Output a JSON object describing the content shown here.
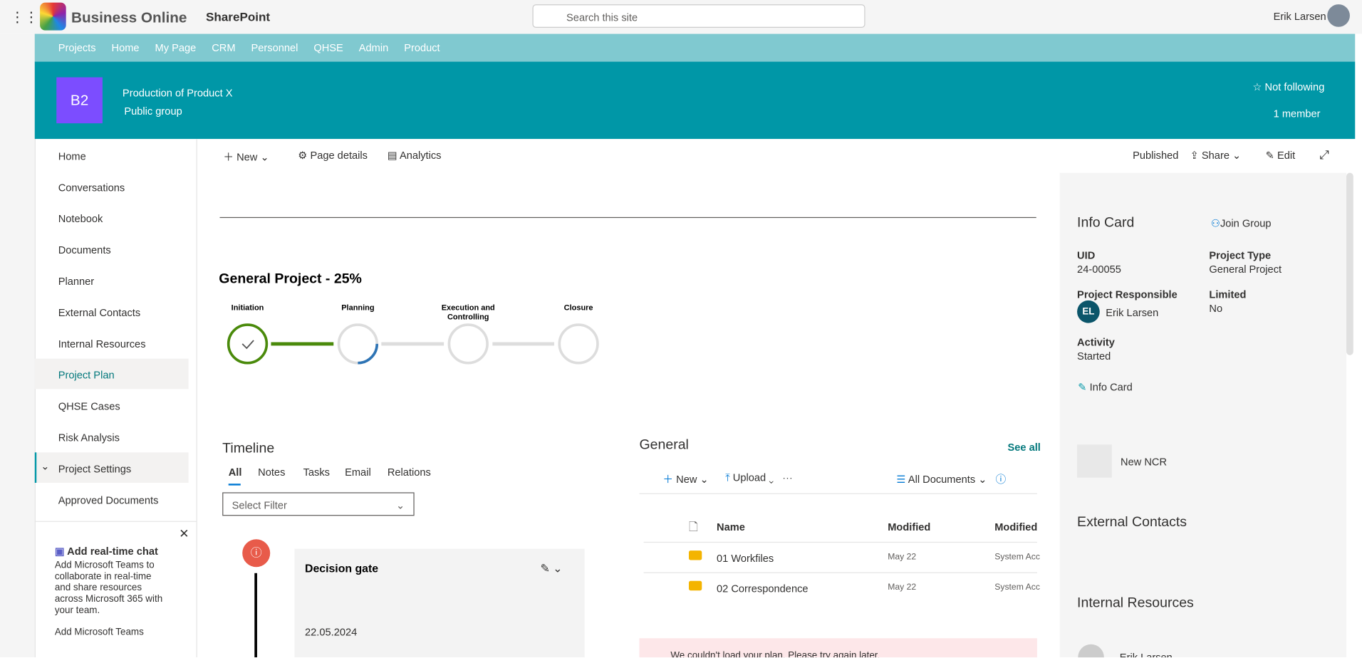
{
  "header": {
    "app_name": "Business Online",
    "product": "SharePoint",
    "search": "Search this site",
    "user": "Erik Larsen"
  },
  "topnav": [
    "Projects",
    "Home",
    "My Page",
    "CRM",
    "Personnel",
    "QHSE",
    "Admin",
    "Product"
  ],
  "site": {
    "logo": "B2",
    "title": "Production of Product X",
    "subtitle": "Public group",
    "follow": "Not following",
    "members": "1 member"
  },
  "leftnav": [
    "Home",
    "Conversations",
    "Notebook",
    "Documents",
    "Planner",
    "External Contacts",
    "Internal Resources",
    "Project Plan",
    "QHSE Cases",
    "Risk Analysis",
    "Project Settings",
    "Approved Documents"
  ],
  "chat": {
    "title": "Add real-time chat",
    "body": "Add Microsoft Teams to collaborate in real-time and share resources across Microsoft 365 with your team.",
    "link": "Add Microsoft Teams"
  },
  "commandbar": {
    "new": "New",
    "page_details": "Page details",
    "analytics": "Analytics",
    "status": "Published",
    "share": "Share",
    "edit": "Edit"
  },
  "progress": {
    "title": "General Project  - 25%",
    "stages": [
      "Initiation",
      "Planning",
      "Execution and Controlling",
      "Closure"
    ]
  },
  "timeline": {
    "title": "Timeline",
    "tabs": [
      "All",
      "Notes",
      "Tasks",
      "Email",
      "Relations"
    ],
    "filter": "Select Filter",
    "card_title": "Decision gate",
    "date": "22.05.2024"
  },
  "library": {
    "title": "General",
    "see_all": "See all",
    "new": "New",
    "upload": "Upload",
    "view": "All Documents",
    "columns": [
      "Name",
      "Modified",
      "Modified"
    ],
    "rows": [
      [
        "01 Workfiles",
        "May 22",
        "System Acc"
      ],
      [
        "02 Correspondence",
        "May 22",
        "System Acc"
      ]
    ],
    "error": "We couldn't load your plan. Please try again later."
  },
  "info": {
    "title": "Info Card",
    "join": "Join Group",
    "fields": [
      {
        "label": "UID",
        "value": "24-00055"
      },
      {
        "label": "Project Type",
        "value": "General Project"
      },
      {
        "label": "Project Responsible",
        "value": "Erik Larsen"
      },
      {
        "label": "Limited",
        "value": "No"
      },
      {
        "label": "Activity",
        "value": "Started"
      }
    ],
    "initials": "EL",
    "edit": "Info Card",
    "ncr": "New NCR",
    "external": "External Contacts",
    "internal": "Internal Resources",
    "person": "Erik Larsen"
  }
}
